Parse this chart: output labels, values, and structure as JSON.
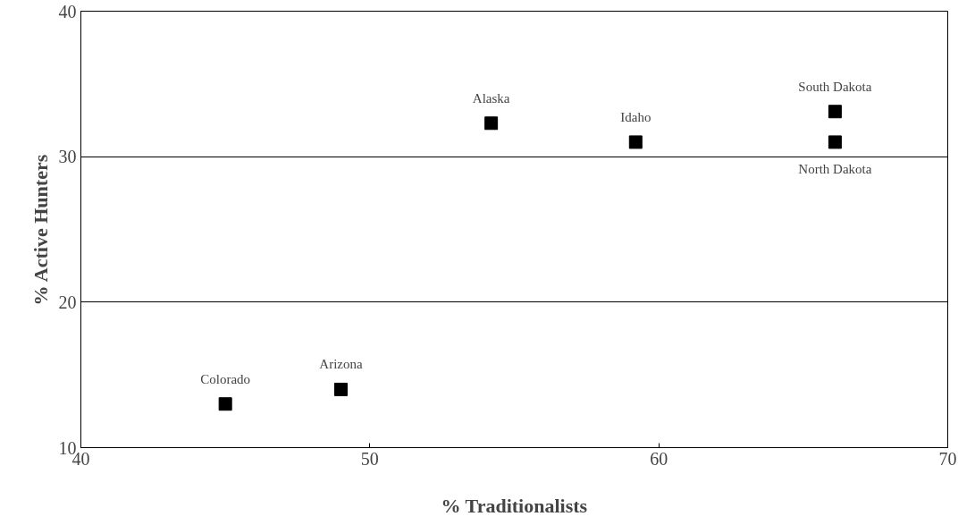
{
  "chart_data": {
    "type": "scatter",
    "xlabel": "% Traditionalists",
    "ylabel": "% Active Hunters",
    "x": [
      45,
      49,
      54.2,
      59.2,
      66.1,
      66.1
    ],
    "values": [
      13,
      14,
      32.3,
      31,
      33.1,
      31
    ],
    "color": "#000000",
    "marker": "square",
    "xlim": [
      40,
      70
    ],
    "ylim": [
      10,
      40
    ],
    "xticks": [
      40,
      50,
      60,
      70
    ],
    "yticks": [
      10,
      20,
      30,
      40
    ],
    "grid": "y",
    "annotations": [
      {
        "text": "Colorado",
        "x": 45,
        "y": 13
      },
      {
        "text": "Arizona",
        "x": 49,
        "y": 14
      },
      {
        "text": "Alaska",
        "x": 54.2,
        "y": 32.3
      },
      {
        "text": "Idaho",
        "x": 59.2,
        "y": 31
      },
      {
        "text": "South Dakota",
        "x": 66.1,
        "y": 33.1
      },
      {
        "text": "North Dakota",
        "x": 66.1,
        "y": 31
      }
    ]
  }
}
